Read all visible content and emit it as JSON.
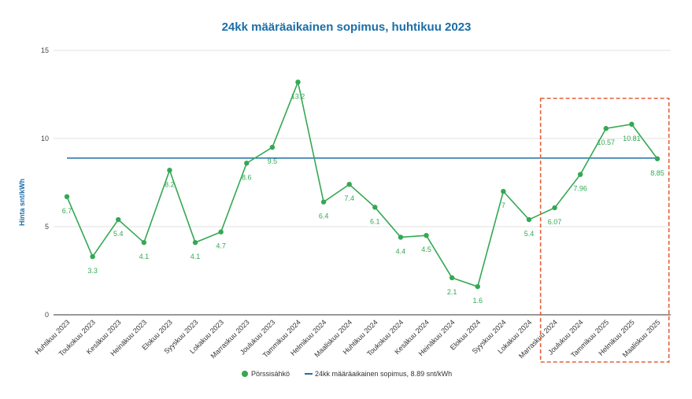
{
  "chart_data": {
    "type": "line",
    "title": "24kk määräaikainen sopimus, huhtikuu 2023",
    "xlabel": "",
    "ylabel": "Hinta snt/kWh",
    "ylim": [
      0,
      15
    ],
    "yticks": [
      0,
      5,
      10,
      15
    ],
    "grid": true,
    "legend_position": "bottom",
    "categories": [
      "Huhtikuu 2023",
      "Toukokuu 2023",
      "Kesäkuu 2023",
      "Heinäkuu 2023",
      "Elokuu 2023",
      "Syyskuu 2023",
      "Lokakuu 2023",
      "Marraskuu 2023",
      "Joulukuu 2023",
      "Tammikuu 2024",
      "Helmikuu 2024",
      "Maaliskuu 2024",
      "Huhtikuu 2024",
      "Toukokuu 2024",
      "Kesäkuu 2024",
      "Heinäkuu 2024",
      "Elokuu 2024",
      "Syyskuu 2024",
      "Lokakuu 2024",
      "Marraskuu 2024",
      "Joulukuu 2024",
      "Tammikuu 2025",
      "Helmikuu 2025",
      "Maaliskuu 2025"
    ],
    "series": [
      {
        "name": "Pörssisähkö",
        "kind": "line-with-markers",
        "color": "#34a853",
        "values": [
          6.7,
          3.3,
          5.4,
          4.1,
          8.2,
          4.1,
          4.7,
          8.6,
          9.5,
          13.2,
          6.4,
          7.4,
          6.1,
          4.4,
          4.5,
          2.1,
          1.6,
          7,
          5.4,
          6.07,
          7.96,
          10.57,
          10.81,
          8.85
        ],
        "labels": [
          "6.7",
          "3.3",
          "5.4",
          "4.1",
          "8.2",
          "4.1",
          "4.7",
          "8.6",
          "9.5",
          "13.2",
          "6.4",
          "7.4",
          "6.1",
          "4.4",
          "4.5",
          "2.1",
          "1.6",
          "7",
          "5.4",
          "6.07",
          "7.96",
          "10.57",
          "10.81",
          "8.85"
        ]
      },
      {
        "name": "24kk määräaikainen sopimus, 8.89 snt/kWh",
        "kind": "constant-line",
        "color": "#1f6fa8",
        "value": 8.89
      }
    ],
    "highlight": {
      "from_category": "Marraskuu 2024",
      "to_category": "Maaliskuu 2025",
      "style": "dashed",
      "color": "#e0603a"
    }
  },
  "colors": {
    "title": "#1a6ea8",
    "ylabel": "#1a6ea8",
    "grid": "#d9d9d9",
    "axis": "#333333"
  }
}
